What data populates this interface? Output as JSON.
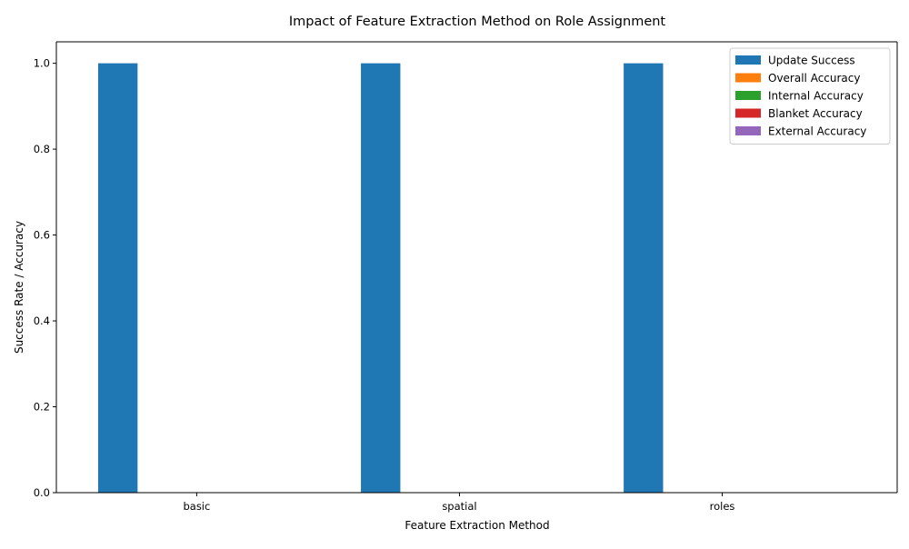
{
  "chart_data": {
    "type": "bar",
    "title": "Impact of Feature Extraction Method on Role Assignment",
    "xlabel": "Feature Extraction Method",
    "ylabel": "Success Rate / Accuracy",
    "categories": [
      "basic",
      "spatial",
      "roles"
    ],
    "series": [
      {
        "name": "Update Success",
        "values": [
          1.0,
          1.0,
          1.0
        ],
        "color": "#1f77b4"
      },
      {
        "name": "Overall Accuracy",
        "values": [
          0.0,
          0.0,
          0.0
        ],
        "color": "#ff7f0e"
      },
      {
        "name": "Internal Accuracy",
        "values": [
          0.0,
          0.0,
          0.0
        ],
        "color": "#2ca02c"
      },
      {
        "name": "Blanket Accuracy",
        "values": [
          0.0,
          0.0,
          0.0
        ],
        "color": "#d62728"
      },
      {
        "name": "External Accuracy",
        "values": [
          0.0,
          0.0,
          0.0
        ],
        "color": "#9467bd"
      }
    ],
    "ylim": [
      0,
      1.05
    ],
    "yticks": [
      0.0,
      0.2,
      0.4,
      0.6,
      0.8,
      1.0
    ],
    "ytick_labels": [
      "0.0",
      "0.2",
      "0.4",
      "0.6",
      "0.8",
      "1.0"
    ],
    "grid": false,
    "legend_position": "top-right"
  }
}
